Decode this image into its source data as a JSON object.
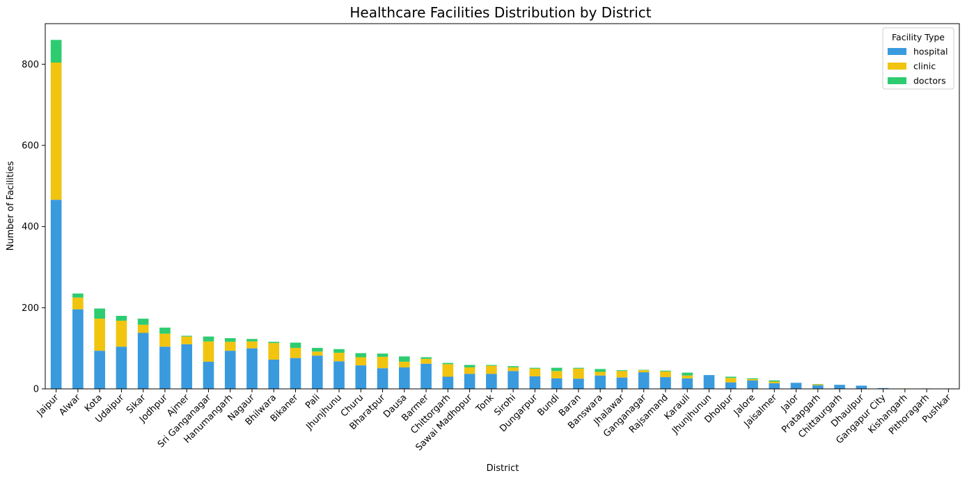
{
  "chart_data": {
    "type": "bar",
    "stacked": true,
    "title": "Healthcare Facilities Distribution by District",
    "xlabel": "District",
    "ylabel": "Number of Facilities",
    "ylim": [
      0,
      900
    ],
    "yticks": [
      0,
      200,
      400,
      600,
      800
    ],
    "grid": false,
    "legend": {
      "title": "Facility Type",
      "position": "top-right"
    },
    "categories": [
      "Jaipur",
      "Alwar",
      "Kota",
      "Udaipur",
      "Sikar",
      "Jodhpur",
      "Ajmer",
      "Sri Ganganagar",
      "Hanumangarh",
      "Nagaur",
      "Bhilwara",
      "Bikaner",
      "Pali",
      "Jhunjhunu",
      "Churu",
      "Bharatpur",
      "Dausa",
      "Barmer",
      "Chittorgarh",
      "Sawai Madhopur",
      "Tonk",
      "Sirohi",
      "Dungarpur",
      "Bundi",
      "Baran",
      "Banswara",
      "Jhalawar",
      "Ganganagar",
      "Rajsamand",
      "Karauli",
      "Jhunjhunun",
      "Dholpur",
      "Jalore",
      "Jaisalmer",
      "Jalor",
      "Pratapgarh",
      "Chittaurgarh",
      "Dhaulpur",
      "Gangapur City",
      "Kishangarh",
      "Pithoragarh",
      "Pushkar"
    ],
    "series": [
      {
        "name": "hospital",
        "color": "#3a9ade",
        "values": [
          466,
          196,
          94,
          104,
          138,
          104,
          110,
          67,
          94,
          100,
          72,
          76,
          82,
          68,
          58,
          51,
          53,
          62,
          30,
          37,
          37,
          44,
          31,
          26,
          25,
          33,
          28,
          41,
          29,
          26,
          34,
          16,
          21,
          14,
          15,
          9,
          10,
          8,
          2,
          0,
          1,
          1
        ]
      },
      {
        "name": "clinic",
        "color": "#f1c40f",
        "values": [
          338,
          29,
          79,
          64,
          20,
          32,
          19,
          50,
          22,
          17,
          41,
          25,
          10,
          21,
          20,
          28,
          14,
          12,
          31,
          16,
          20,
          9,
          19,
          18,
          25,
          9,
          16,
          5,
          14,
          7,
          0,
          11,
          3,
          4,
          0,
          2,
          0,
          0,
          0,
          1,
          0,
          0
        ]
      },
      {
        "name": "doctors",
        "color": "#2ecc71",
        "values": [
          56,
          10,
          25,
          12,
          15,
          15,
          2,
          12,
          9,
          6,
          3,
          13,
          9,
          9,
          10,
          8,
          13,
          4,
          3,
          6,
          2,
          3,
          2,
          8,
          2,
          7,
          2,
          1,
          2,
          7,
          0,
          3,
          2,
          3,
          0,
          1,
          0,
          0,
          0,
          0,
          0,
          0
        ]
      }
    ]
  }
}
